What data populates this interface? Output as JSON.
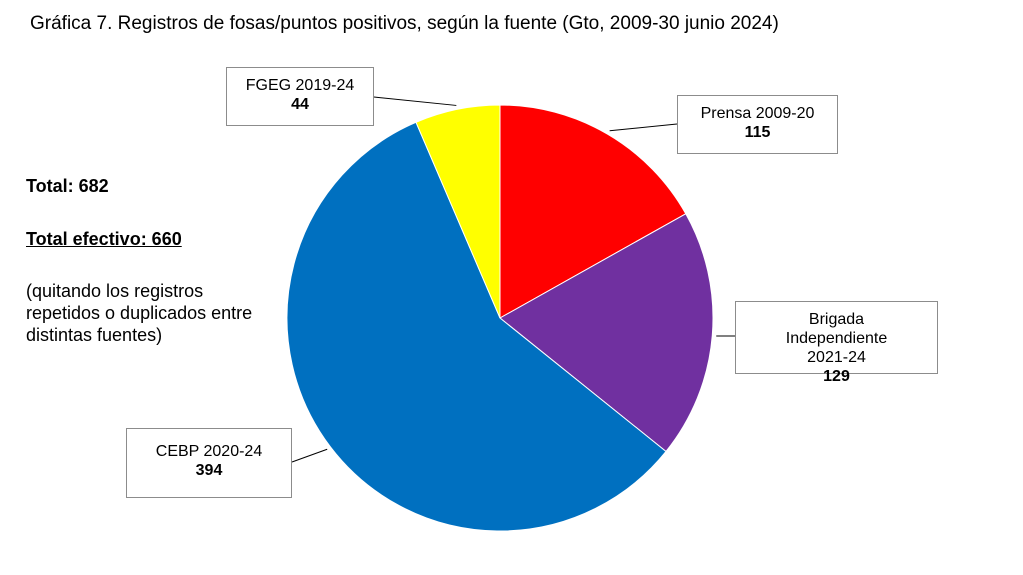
{
  "title": "Gráfica 7. Registros de fosas/puntos positivos, según la fuente (Gto, 2009-30 junio 2024)",
  "side": {
    "total": "Total: 682",
    "total_efectivo": "Total efectivo: 660",
    "note": "(quitando los registros repetidos o duplicados entre distintas fuentes)"
  },
  "chart_data": {
    "type": "pie",
    "title": "Gráfica 7. Registros de fosas/puntos positivos, según la fuente (Gto, 2009-30 junio 2024)",
    "categories": [
      "Prensa 2009-20",
      "Brigada Independiente 2021-24",
      "CEBP 2020-24",
      "FGEG 2019-24"
    ],
    "values": [
      115,
      129,
      394,
      44
    ],
    "colors": [
      "#ff0000",
      "#7030a0",
      "#0070c0",
      "#ffff00"
    ],
    "labels": [
      {
        "name": "Prensa 2009-20",
        "value": "115"
      },
      {
        "name": "Brigada Independiente 2021-24",
        "value": "129"
      },
      {
        "name": "CEBP 2020-24",
        "value": "394"
      },
      {
        "name": "FGEG 2019-24",
        "value": "44"
      }
    ],
    "start": "12 o'clock",
    "direction": "clockwise",
    "legend": "none"
  }
}
